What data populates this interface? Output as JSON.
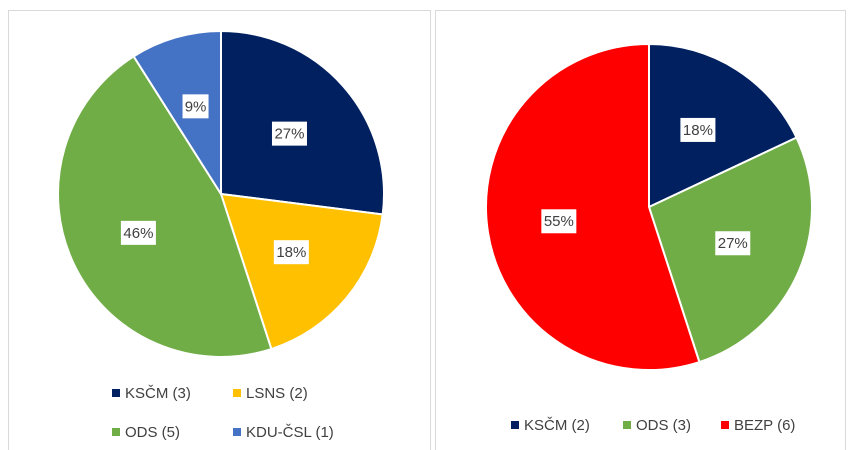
{
  "chart_data": [
    {
      "type": "pie",
      "categories": [
        "KSČM (3)",
        "LSNS (2)",
        "ODS (5)",
        "KDU-ČSL (1)"
      ],
      "values": [
        27,
        18,
        46,
        9
      ],
      "value_labels": [
        "27%",
        "18%",
        "46%",
        "9%"
      ],
      "colors": [
        "#002060",
        "#ffc000",
        "#70ad47",
        "#4472c4"
      ],
      "legend": "bottom"
    },
    {
      "type": "pie",
      "categories": [
        "KSČM (2)",
        "ODS (3)",
        "BEZP (6)"
      ],
      "values": [
        18,
        27,
        55
      ],
      "value_labels": [
        "18%",
        "27%",
        "55%"
      ],
      "colors": [
        "#002060",
        "#70ad47",
        "#ff0000"
      ],
      "legend": "bottom"
    }
  ]
}
